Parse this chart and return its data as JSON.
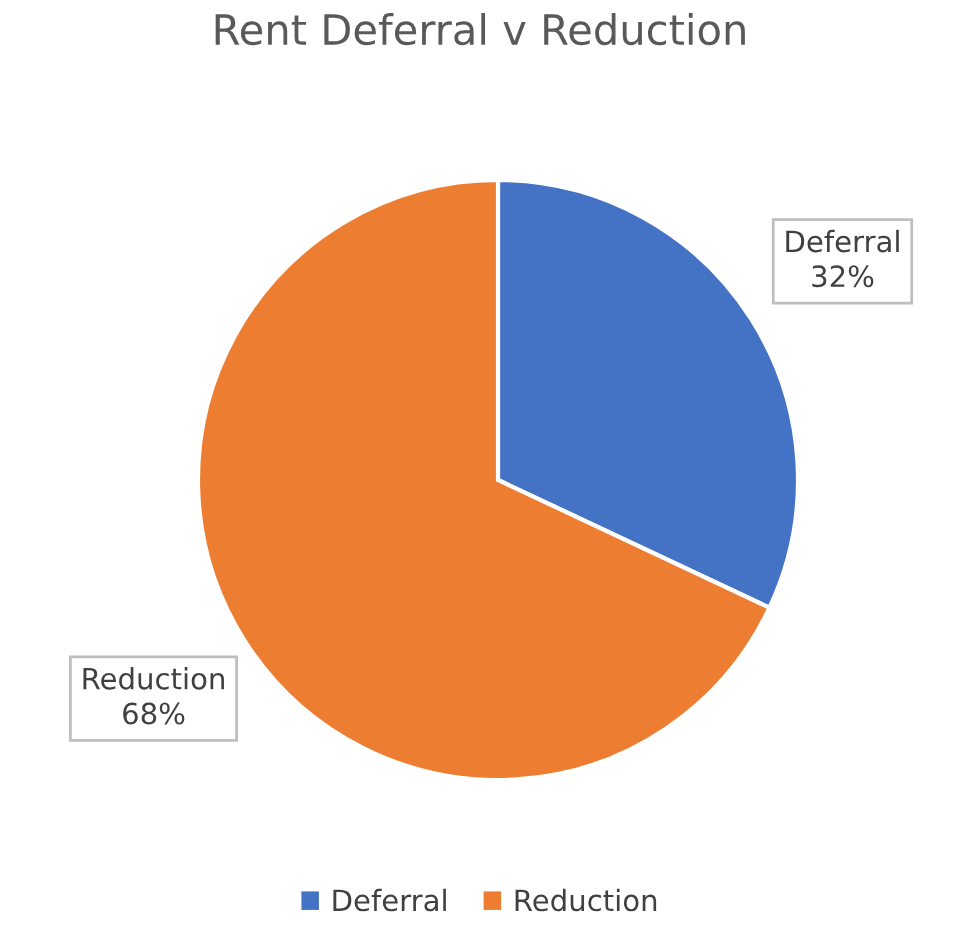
{
  "chart_data": {
    "type": "pie",
    "title": "Rent Deferral v Reduction",
    "categories": [
      "Deferral",
      "Reduction"
    ],
    "values": [
      32,
      68
    ],
    "colors": [
      "#4472c4",
      "#ed7d31"
    ],
    "value_labels": [
      "32%",
      "68%"
    ],
    "legend": "bottom"
  }
}
